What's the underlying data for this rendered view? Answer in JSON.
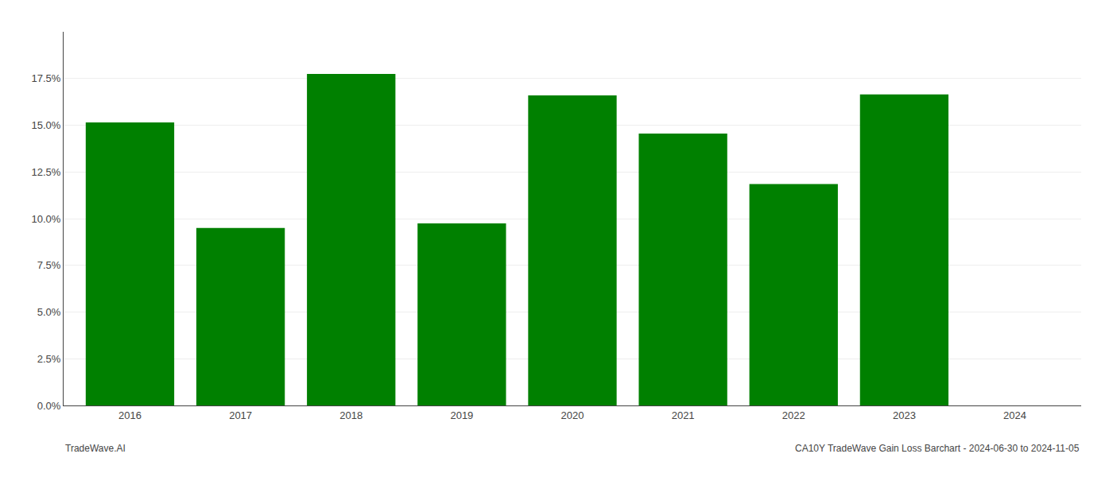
{
  "chart_data": {
    "type": "bar",
    "categories": [
      "2016",
      "2017",
      "2018",
      "2019",
      "2020",
      "2021",
      "2022",
      "2023",
      "2024"
    ],
    "values": [
      0.1515,
      0.095,
      0.1775,
      0.0975,
      0.166,
      0.1455,
      0.1185,
      0.1665,
      null
    ],
    "color": "#008000",
    "ylim": [
      0,
      0.2
    ],
    "yticks": [
      {
        "value": 0.0,
        "label": "0.0%"
      },
      {
        "value": 0.025,
        "label": "2.5%"
      },
      {
        "value": 0.05,
        "label": "5.0%"
      },
      {
        "value": 0.075,
        "label": "7.5%"
      },
      {
        "value": 0.1,
        "label": "10.0%"
      },
      {
        "value": 0.125,
        "label": "12.5%"
      },
      {
        "value": 0.15,
        "label": "15.0%"
      },
      {
        "value": 0.175,
        "label": "17.5%"
      }
    ],
    "grid": true,
    "annotations": [
      "TradeWave.AI",
      "CA10Y TradeWave Gain Loss Barchart - 2024-06-30 to 2024-11-05"
    ]
  }
}
